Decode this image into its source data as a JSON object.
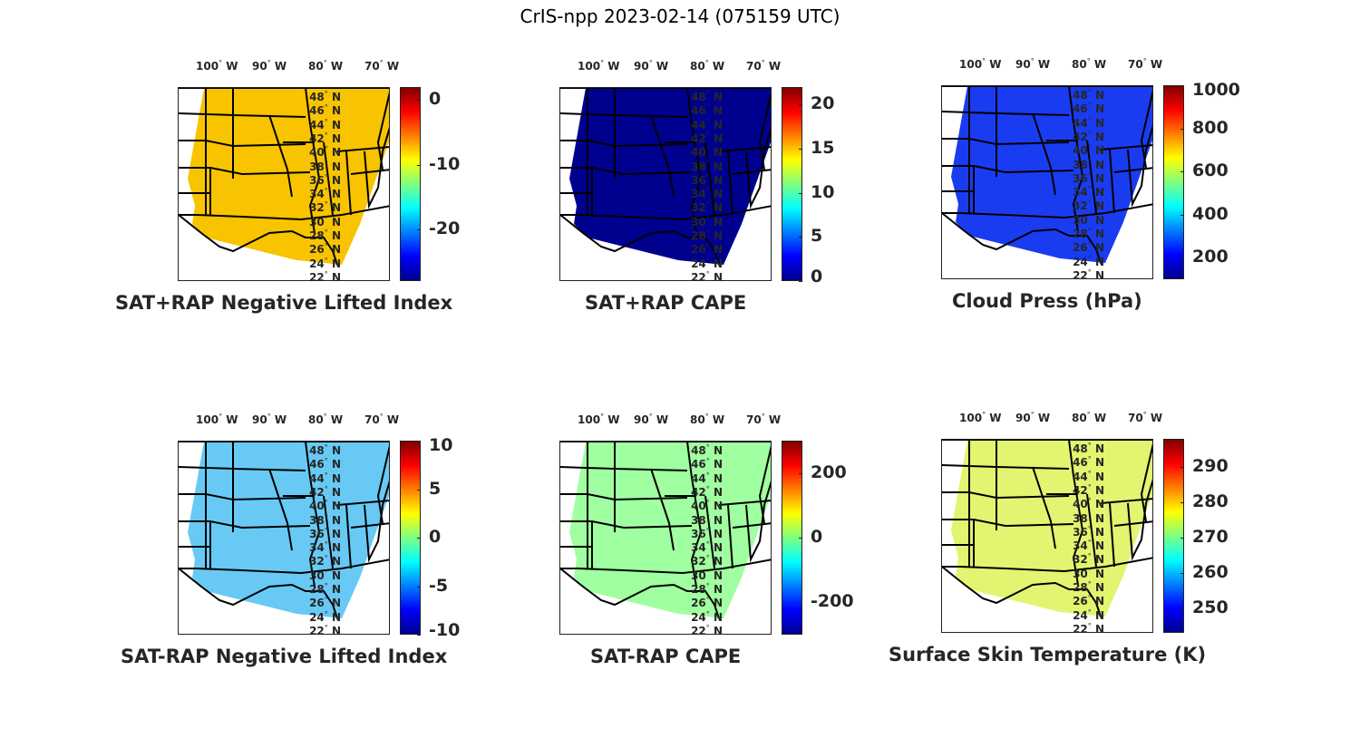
{
  "figure_title": "CrIS-npp 2023-02-14 (075159 UTC)",
  "chart_data": [
    {
      "type": "heatmap",
      "title": "SAT+RAP Negative Lifted Index",
      "xtick_labels": [
        "100",
        "90",
        "80",
        "70"
      ],
      "xtick_suffix": "W",
      "ytick_labels": [
        "48",
        "46",
        "44",
        "42",
        "40",
        "38",
        "36",
        "34",
        "32",
        "30",
        "28",
        "26",
        "24",
        "22"
      ],
      "ytick_suffix": "N",
      "colorbar": {
        "ticks": [
          "0",
          "-10",
          "-20"
        ],
        "tick_values": [
          0,
          -10,
          -20
        ],
        "range": [
          -28,
          2
        ]
      },
      "dominant_color": "#f8c400"
    },
    {
      "type": "heatmap",
      "title": "SAT+RAP CAPE",
      "xtick_labels": [
        "100",
        "90",
        "80",
        "70"
      ],
      "xtick_suffix": "W",
      "ytick_labels": [
        "48",
        "46",
        "44",
        "42",
        "40",
        "38",
        "36",
        "34",
        "32",
        "30",
        "28",
        "26",
        "24",
        "22"
      ],
      "ytick_suffix": "N",
      "colorbar": {
        "ticks": [
          "20",
          "15",
          "10",
          "5",
          "0"
        ],
        "tick_values": [
          20,
          15,
          10,
          5,
          0
        ],
        "range": [
          0,
          22
        ]
      },
      "dominant_color": "#00008f"
    },
    {
      "type": "heatmap",
      "title": "Cloud Press (hPa)",
      "xtick_labels": [
        "100",
        "90",
        "80",
        "70"
      ],
      "xtick_suffix": "W",
      "ytick_labels": [
        "48",
        "46",
        "44",
        "42",
        "40",
        "38",
        "36",
        "34",
        "32",
        "30",
        "28",
        "26",
        "24",
        "22"
      ],
      "ytick_suffix": "N",
      "colorbar": {
        "ticks": [
          "1000",
          "800",
          "600",
          "400",
          "200"
        ],
        "tick_values": [
          1000,
          800,
          600,
          400,
          200
        ],
        "range": [
          100,
          1000
        ]
      },
      "dominant_color": "#1a3cf0"
    },
    {
      "type": "heatmap",
      "title": "SAT-RAP Negative Lifted Index",
      "xtick_labels": [
        "100",
        "90",
        "80",
        "70"
      ],
      "xtick_suffix": "W",
      "ytick_labels": [
        "48",
        "46",
        "44",
        "42",
        "40",
        "38",
        "36",
        "34",
        "32",
        "30",
        "28",
        "26",
        "24",
        "22"
      ],
      "ytick_suffix": "N",
      "colorbar": {
        "ticks": [
          "10",
          "5",
          "0",
          "-5",
          "-10"
        ],
        "tick_values": [
          10,
          5,
          0,
          -5,
          -10
        ],
        "range": [
          -10,
          10
        ]
      },
      "dominant_color": "#35b8f0"
    },
    {
      "type": "heatmap",
      "title": "SAT-RAP CAPE",
      "xtick_labels": [
        "100",
        "90",
        "80",
        "70"
      ],
      "xtick_suffix": "W",
      "ytick_labels": [
        "48",
        "46",
        "44",
        "42",
        "40",
        "38",
        "36",
        "34",
        "32",
        "30",
        "28",
        "26",
        "24",
        "22"
      ],
      "ytick_suffix": "N",
      "colorbar": {
        "ticks": [
          "200",
          "0",
          "-200"
        ],
        "tick_values": [
          200,
          0,
          -200
        ],
        "range": [
          -300,
          300
        ]
      },
      "dominant_color": "#80ff80"
    },
    {
      "type": "heatmap",
      "title": "Surface Skin Temperature (K)",
      "xtick_labels": [
        "100",
        "90",
        "80",
        "70"
      ],
      "xtick_suffix": "W",
      "ytick_labels": [
        "48",
        "46",
        "44",
        "42",
        "40",
        "38",
        "36",
        "34",
        "32",
        "30",
        "28",
        "26",
        "24",
        "22"
      ],
      "ytick_suffix": "N",
      "colorbar": {
        "ticks": [
          "290",
          "280",
          "270",
          "260",
          "250"
        ],
        "tick_values": [
          290,
          280,
          270,
          260,
          250
        ],
        "range": [
          243,
          298
        ]
      },
      "dominant_color": "#d8f040"
    }
  ]
}
